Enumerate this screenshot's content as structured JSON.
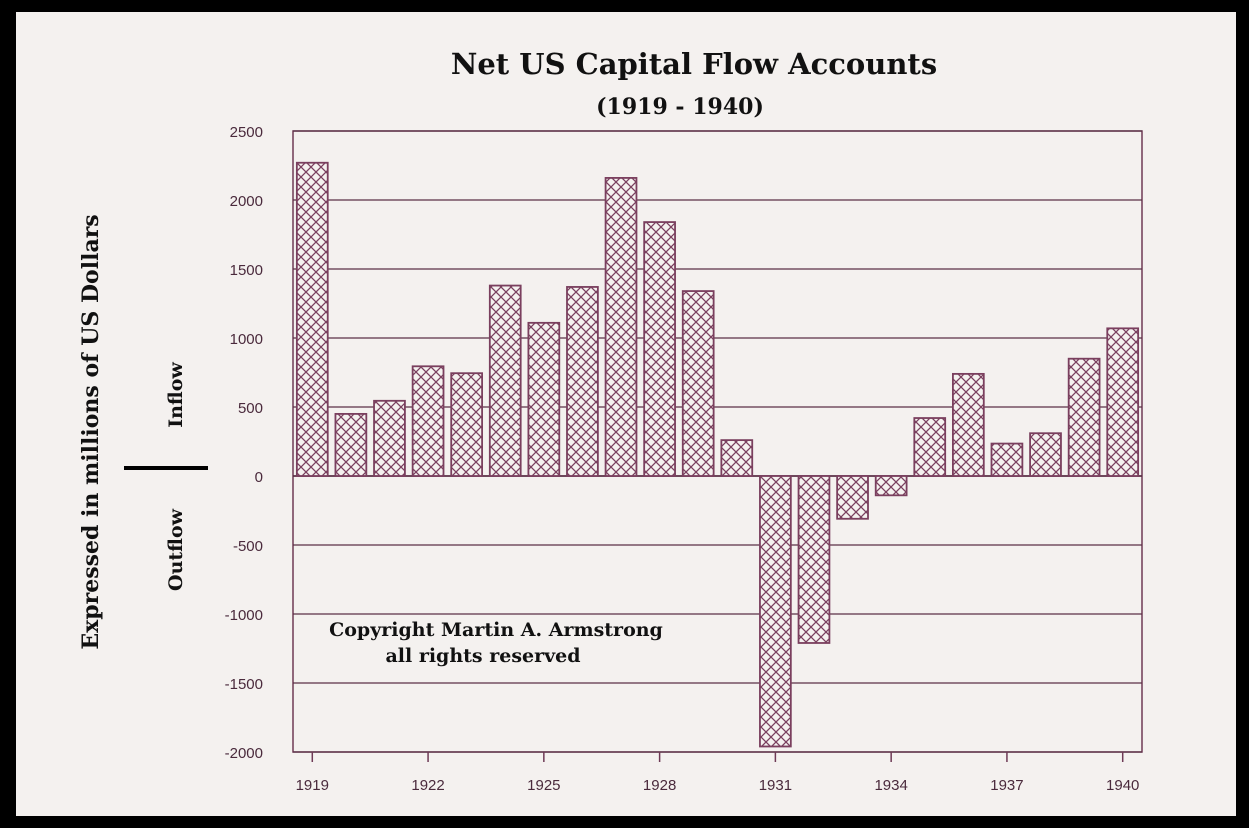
{
  "chart_data": {
    "type": "bar",
    "title": "Net US Capital Flow Accounts",
    "subtitle": "(1919 - 1940)",
    "ylabel": "Expressed in millions of US Dollars",
    "inflow_label": "Inflow",
    "outflow_label": "Outflow",
    "copyright_line1": "Copyright Martin A. Armstrong",
    "copyright_line2": "all rights reserved",
    "ylim": [
      -2000,
      2500
    ],
    "yticks": [
      2500,
      2000,
      1500,
      1000,
      500,
      0,
      -500,
      -1000,
      -1500,
      -2000
    ],
    "grid": true,
    "categories": [
      "1919",
      "1920",
      "1921",
      "1922",
      "1923",
      "1924",
      "1925",
      "1926",
      "1927",
      "1928",
      "1929",
      "1930",
      "1931",
      "1932",
      "1933",
      "1934",
      "1935",
      "1936",
      "1937",
      "1938",
      "1939",
      "1940"
    ],
    "xtick_labels": [
      "1919",
      "1922",
      "1925",
      "1928",
      "1931",
      "1934",
      "1937",
      "1940"
    ],
    "values": [
      2270,
      450,
      545,
      795,
      745,
      1380,
      1110,
      1370,
      2160,
      1840,
      1340,
      260,
      -1960,
      -1210,
      -310,
      -140,
      420,
      740,
      235,
      310,
      850,
      1070
    ],
    "colors": {
      "bar": "#7a3f5e",
      "axis": "#6e3a55",
      "grid": "#5a3046",
      "background": "#f4f1ef",
      "border": "#000000"
    }
  }
}
